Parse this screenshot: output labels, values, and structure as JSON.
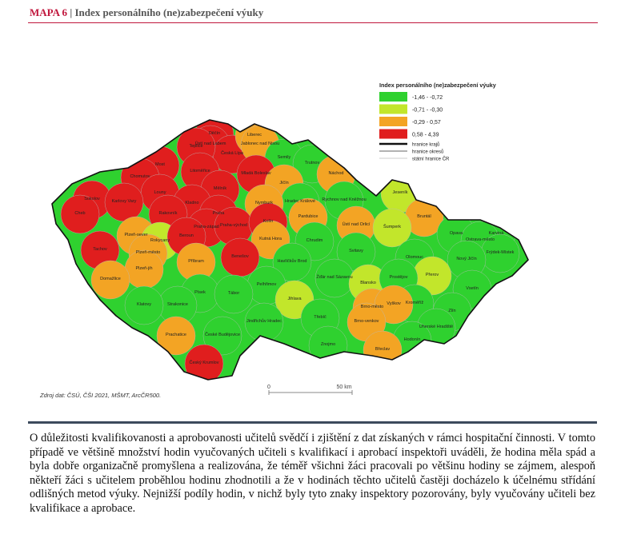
{
  "header": {
    "label": "MAPA 6",
    "separator": "|",
    "title": "Index personálního (ne)zabezpečení výuky"
  },
  "map": {
    "legend": {
      "title": "Index personálního (ne)zabezpečení výuky",
      "classes": [
        {
          "label": "-1,46 - -0,72",
          "color": "#2fd12f"
        },
        {
          "label": "-0,71 - -0,30",
          "color": "#c2e62b"
        },
        {
          "label": "-0,29 - 0,57",
          "color": "#f3a424"
        },
        {
          "label": "0,58 - 4,39",
          "color": "#e01e1e"
        }
      ],
      "lines": [
        {
          "label": "hranice krajů",
          "color": "#111111"
        },
        {
          "label": "hranice okresů",
          "color": "#999999"
        },
        {
          "label": "státní hranice ČR",
          "color": "#dddddd"
        }
      ]
    },
    "source": "Zdroj dat: ČSÚ, ČŠI 2021, MŠMT, ArcČR500.",
    "scale": {
      "start": "0",
      "end": "50 km"
    },
    "districts": [
      {
        "name": "Děčín",
        "color": "#e01e1e"
      },
      {
        "name": "Ústí nad Labem",
        "color": "#e01e1e"
      },
      {
        "name": "Česká Lípa",
        "color": "#e01e1e"
      },
      {
        "name": "Liberec",
        "color": "#f3a424"
      },
      {
        "name": "Jablonec nad Nisou",
        "color": "#f3a424"
      },
      {
        "name": "Semily",
        "color": "#2fd12f"
      },
      {
        "name": "Trutnov",
        "color": "#2fd12f"
      },
      {
        "name": "Náchod",
        "color": "#f3a424"
      },
      {
        "name": "Teplice",
        "color": "#e01e1e"
      },
      {
        "name": "Most",
        "color": "#e01e1e"
      },
      {
        "name": "Chomutov",
        "color": "#e01e1e"
      },
      {
        "name": "Litoměřice",
        "color": "#e01e1e"
      },
      {
        "name": "Mladá Boleslav",
        "color": "#e01e1e"
      },
      {
        "name": "Jičín",
        "color": "#f3a424"
      },
      {
        "name": "Hradec Králové",
        "color": "#2fd12f"
      },
      {
        "name": "Rychnov nad Kněžnou",
        "color": "#2fd12f"
      },
      {
        "name": "Louny",
        "color": "#e01e1e"
      },
      {
        "name": "Mělník",
        "color": "#e01e1e"
      },
      {
        "name": "Sokolov",
        "color": "#e01e1e"
      },
      {
        "name": "Karlovy Vary",
        "color": "#e01e1e"
      },
      {
        "name": "Kladno",
        "color": "#e01e1e"
      },
      {
        "name": "Nymburk",
        "color": "#f3a424"
      },
      {
        "name": "Cheb",
        "color": "#e01e1e"
      },
      {
        "name": "Rakovník",
        "color": "#e01e1e"
      },
      {
        "name": "Praha",
        "color": "#e01e1e"
      },
      {
        "name": "Praha-západ",
        "color": "#e01e1e"
      },
      {
        "name": "Praha-východ",
        "color": "#e01e1e"
      },
      {
        "name": "Kolín",
        "color": "#e01e1e"
      },
      {
        "name": "Pardubice",
        "color": "#f3a424"
      },
      {
        "name": "Ústí nad Orlicí",
        "color": "#f3a424"
      },
      {
        "name": "Jeseník",
        "color": "#c2e62b"
      },
      {
        "name": "Bruntál",
        "color": "#f3a424"
      },
      {
        "name": "Plzeň-sever",
        "color": "#f3a424"
      },
      {
        "name": "Rokycany",
        "color": "#c2e62b"
      },
      {
        "name": "Beroun",
        "color": "#e01e1e"
      },
      {
        "name": "Kutná Hora",
        "color": "#f3a424"
      },
      {
        "name": "Chrudim",
        "color": "#2fd12f"
      },
      {
        "name": "Šumperk",
        "color": "#c2e62b"
      },
      {
        "name": "Opava",
        "color": "#2fd12f"
      },
      {
        "name": "Karviná",
        "color": "#2fd12f"
      },
      {
        "name": "Ostrava-město",
        "color": "#2fd12f"
      },
      {
        "name": "Tachov",
        "color": "#e01e1e"
      },
      {
        "name": "Plzeň-město",
        "color": "#f3a424"
      },
      {
        "name": "Příbram",
        "color": "#f3a424"
      },
      {
        "name": "Benešov",
        "color": "#e01e1e"
      },
      {
        "name": "Svitavy",
        "color": "#2fd12f"
      },
      {
        "name": "Olomouc",
        "color": "#2fd12f"
      },
      {
        "name": "Frýdek-Místek",
        "color": "#2fd12f"
      },
      {
        "name": "Nový Jičín",
        "color": "#2fd12f"
      },
      {
        "name": "Havlíčkův Brod",
        "color": "#2fd12f"
      },
      {
        "name": "Žďár nad Sázavou",
        "color": "#2fd12f"
      },
      {
        "name": "Plzeň-jih",
        "color": "#f3a424"
      },
      {
        "name": "Domažlice",
        "color": "#f3a424"
      },
      {
        "name": "Přerov",
        "color": "#c2e62b"
      },
      {
        "name": "Vsetín",
        "color": "#2fd12f"
      },
      {
        "name": "Pelhřimov",
        "color": "#2fd12f"
      },
      {
        "name": "Blansko",
        "color": "#c2e62b"
      },
      {
        "name": "Prostějov",
        "color": "#2fd12f"
      },
      {
        "name": "Písek",
        "color": "#2fd12f"
      },
      {
        "name": "Tábor",
        "color": "#2fd12f"
      },
      {
        "name": "Strakonice",
        "color": "#2fd12f"
      },
      {
        "name": "Klatovy",
        "color": "#2fd12f"
      },
      {
        "name": "Jihlava",
        "color": "#c2e62b"
      },
      {
        "name": "Kroměříž",
        "color": "#2fd12f"
      },
      {
        "name": "Brno-město",
        "color": "#f3a424"
      },
      {
        "name": "Vyškov",
        "color": "#f3a424"
      },
      {
        "name": "Zlín",
        "color": "#2fd12f"
      },
      {
        "name": "Třebíč",
        "color": "#2fd12f"
      },
      {
        "name": "Jindřichův Hradec",
        "color": "#2fd12f"
      },
      {
        "name": "Uherské Hradiště",
        "color": "#2fd12f"
      },
      {
        "name": "Brno-venkov",
        "color": "#f3a424"
      },
      {
        "name": "Prachatice",
        "color": "#f3a424"
      },
      {
        "name": "České Budějovice",
        "color": "#2fd12f"
      },
      {
        "name": "Hodonín",
        "color": "#2fd12f"
      },
      {
        "name": "Znojmo",
        "color": "#2fd12f"
      },
      {
        "name": "Břeclav",
        "color": "#f3a424"
      },
      {
        "name": "Český Krumlov",
        "color": "#e01e1e"
      }
    ]
  },
  "paragraph": "O důležitosti kvalifikovanosti a aprobovanosti učitelů svědčí i zjištění z dat získaných v rámci hospitační činnosti. V tomto případě ve většině množství hodin vyučovaných učiteli s kvalifikací i aprobací inspektoři uváděli, že hodina měla spád a byla dobře organizačně promyšlena a realizována, že téměř všichni žáci pracovali po většinu hodiny se zájmem, alespoň někteří žáci s učitelem proběhlou hodinu zhodnotili a že v hodinách těchto učitelů častěji docházelo k účelnému střídání odlišných metod výuky. Nejnižší podíly hodin, v nichž byly tyto znaky inspektory pozorovány, byly vyučovány učiteli bez kvalifikace a aprobace."
}
